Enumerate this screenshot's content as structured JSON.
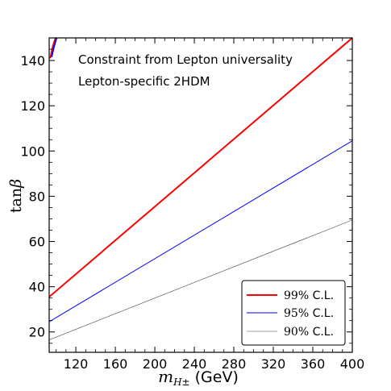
{
  "chart_data": {
    "type": "line",
    "title": "",
    "annotations": [
      "Constraint from Lepton universality",
      "Lepton-specific 2HDM"
    ],
    "xlabel": {
      "symbol": "m",
      "subscript": "H±",
      "unit": "(GeV)"
    },
    "ylabel": {
      "prefix": "tan",
      "symbol": "β"
    },
    "xlim": [
      93,
      400
    ],
    "ylim": [
      11,
      150
    ],
    "xticks": [
      120,
      160,
      200,
      240,
      280,
      320,
      360,
      400
    ],
    "yticks": [
      20,
      40,
      60,
      80,
      100,
      120,
      140
    ],
    "grid": false,
    "legend_position": "lower-right",
    "series": [
      {
        "name": "99% C.L.",
        "label_value": "99%",
        "label_suffix": "C.L.",
        "color": "#ff0000",
        "width": 2.0,
        "x": [
          93,
          400
        ],
        "y": [
          35.5,
          150
        ]
      },
      {
        "name": "95% C.L.",
        "label_value": "95%",
        "label_suffix": "C.L.",
        "color": "#0000ff",
        "width": 1.0,
        "x": [
          93,
          400
        ],
        "y": [
          24.5,
          104.5
        ]
      },
      {
        "name": "90% C.L.",
        "label_value": "90%",
        "label_suffix": "C.L.",
        "color": "#404040",
        "width": 0.6,
        "x": [
          93,
          400
        ],
        "y": [
          16.5,
          69.5
        ]
      }
    ],
    "corner_curves": [
      {
        "color": "#ff0000",
        "x": [
          94,
          95.2,
          96.5,
          97.8,
          99,
          100.5
        ],
        "y": [
          141,
          143.5,
          146,
          148,
          149.5,
          150
        ]
      },
      {
        "color": "#0000ff",
        "x": [
          95.5,
          96.8,
          98.2,
          99.5,
          100.6
        ],
        "y": [
          141.5,
          144,
          146.5,
          148.5,
          150
        ]
      }
    ]
  }
}
